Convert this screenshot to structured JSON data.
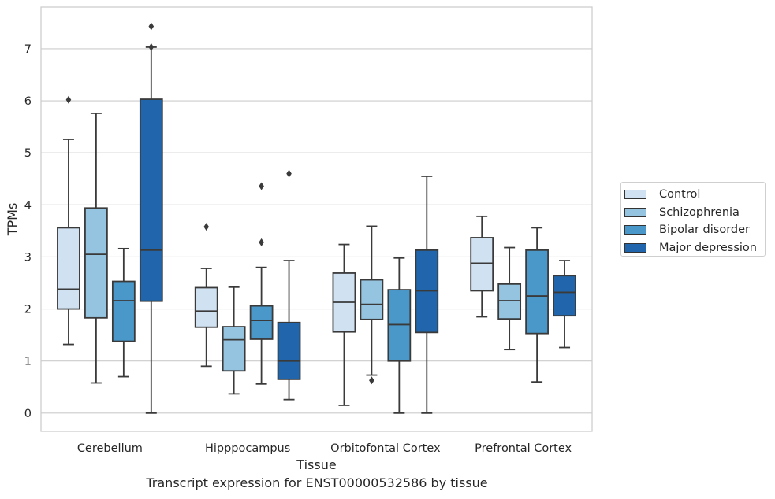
{
  "chart_data": {
    "type": "box",
    "xlabel": "Tissue",
    "ylabel": "TPMs",
    "caption": "Transcript expression for ENST00000532586 by tissue",
    "ylim": [
      -0.35,
      7.8
    ],
    "yticks": [
      0,
      1,
      2,
      3,
      4,
      5,
      6,
      7
    ],
    "grid": "horizontal",
    "legend_position": "right",
    "categories": [
      "Cerebellum",
      "Hipppocampus",
      "Orbitofontal Cortex",
      "Prefrontal Cortex"
    ],
    "series": [
      {
        "name": "Control",
        "color": "#d0e1f2",
        "boxes": [
          {
            "whislo": 1.32,
            "q1": 2.0,
            "med": 2.38,
            "q3": 3.56,
            "whishi": 5.26,
            "fliers": [
              6.02
            ]
          },
          {
            "whislo": 0.9,
            "q1": 1.65,
            "med": 1.96,
            "q3": 2.41,
            "whishi": 2.78,
            "fliers": [
              3.58
            ]
          },
          {
            "whislo": 0.15,
            "q1": 1.56,
            "med": 2.13,
            "q3": 2.69,
            "whishi": 3.24,
            "fliers": []
          },
          {
            "whislo": 1.85,
            "q1": 2.35,
            "med": 2.88,
            "q3": 3.37,
            "whishi": 3.78,
            "fliers": []
          }
        ]
      },
      {
        "name": "Schizophrenia",
        "color": "#94c4df",
        "boxes": [
          {
            "whislo": 0.58,
            "q1": 1.83,
            "med": 3.05,
            "q3": 3.94,
            "whishi": 5.76,
            "fliers": []
          },
          {
            "whislo": 0.37,
            "q1": 0.81,
            "med": 1.41,
            "q3": 1.66,
            "whishi": 2.42,
            "fliers": []
          },
          {
            "whislo": 0.73,
            "q1": 1.8,
            "med": 2.09,
            "q3": 2.56,
            "whishi": 3.59,
            "fliers": [
              0.63
            ]
          },
          {
            "whislo": 1.22,
            "q1": 1.81,
            "med": 2.16,
            "q3": 2.48,
            "whishi": 3.18,
            "fliers": []
          }
        ]
      },
      {
        "name": "Bipolar disorder",
        "color": "#4a98c9",
        "boxes": [
          {
            "whislo": 0.7,
            "q1": 1.38,
            "med": 2.16,
            "q3": 2.53,
            "whishi": 3.16,
            "fliers": []
          },
          {
            "whislo": 0.56,
            "q1": 1.42,
            "med": 1.78,
            "q3": 2.06,
            "whishi": 2.8,
            "fliers": [
              3.28,
              4.36
            ]
          },
          {
            "whislo": 0.0,
            "q1": 1.0,
            "med": 1.7,
            "q3": 2.37,
            "whishi": 2.98,
            "fliers": []
          },
          {
            "whislo": 0.6,
            "q1": 1.53,
            "med": 2.25,
            "q3": 3.13,
            "whishi": 3.56,
            "fliers": []
          }
        ]
      },
      {
        "name": "Major depression",
        "color": "#2166ac",
        "boxes": [
          {
            "whislo": 0.0,
            "q1": 2.15,
            "med": 3.13,
            "q3": 6.03,
            "whishi": 7.03,
            "fliers": [
              7.03,
              7.43
            ]
          },
          {
            "whislo": 0.26,
            "q1": 0.65,
            "med": 1.0,
            "q3": 1.74,
            "whishi": 2.93,
            "fliers": [
              4.6
            ]
          },
          {
            "whislo": 0.0,
            "q1": 1.55,
            "med": 2.35,
            "q3": 3.13,
            "whishi": 4.55,
            "fliers": []
          },
          {
            "whislo": 1.26,
            "q1": 1.87,
            "med": 2.32,
            "q3": 2.64,
            "whishi": 2.93,
            "fliers": []
          }
        ]
      }
    ]
  }
}
